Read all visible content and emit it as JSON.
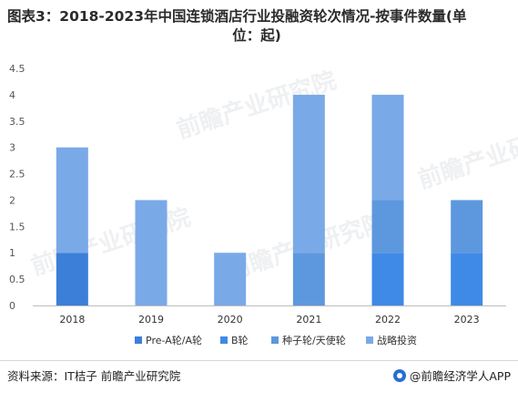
{
  "title": {
    "line1": "图表3：2018-2023年中国连锁酒店行业投融资轮次情况-按事件数量(单",
    "line2": "位：起)"
  },
  "chart_data": {
    "type": "bar",
    "stacked": true,
    "categories": [
      "2018",
      "2019",
      "2020",
      "2021",
      "2022",
      "2023"
    ],
    "series": [
      {
        "name": "Pre-A轮/A轮",
        "color": "#3c7fd8",
        "values": [
          1,
          0,
          0,
          0,
          0,
          0
        ]
      },
      {
        "name": "B轮",
        "color": "#3f8ae6",
        "values": [
          0,
          0,
          0,
          0,
          1,
          1
        ]
      },
      {
        "name": "种子轮/天使轮",
        "color": "#5d98de",
        "values": [
          0,
          0,
          0,
          1,
          1,
          1
        ]
      },
      {
        "name": "战略投资",
        "color": "#7aa9e8",
        "values": [
          2,
          2,
          1,
          3,
          2,
          0
        ]
      }
    ],
    "y_ticks": [
      "0",
      "0.5",
      "1",
      "1.5",
      "2",
      "2.5",
      "3",
      "3.5",
      "4",
      "4.5"
    ],
    "ylim": [
      0,
      4.5
    ],
    "legend": "bottom"
  },
  "footer": {
    "source": "资料来源：IT桔子 前瞻产业研究院",
    "brand": "@前瞻经济学人APP"
  },
  "watermark": "前瞻产业研究院"
}
